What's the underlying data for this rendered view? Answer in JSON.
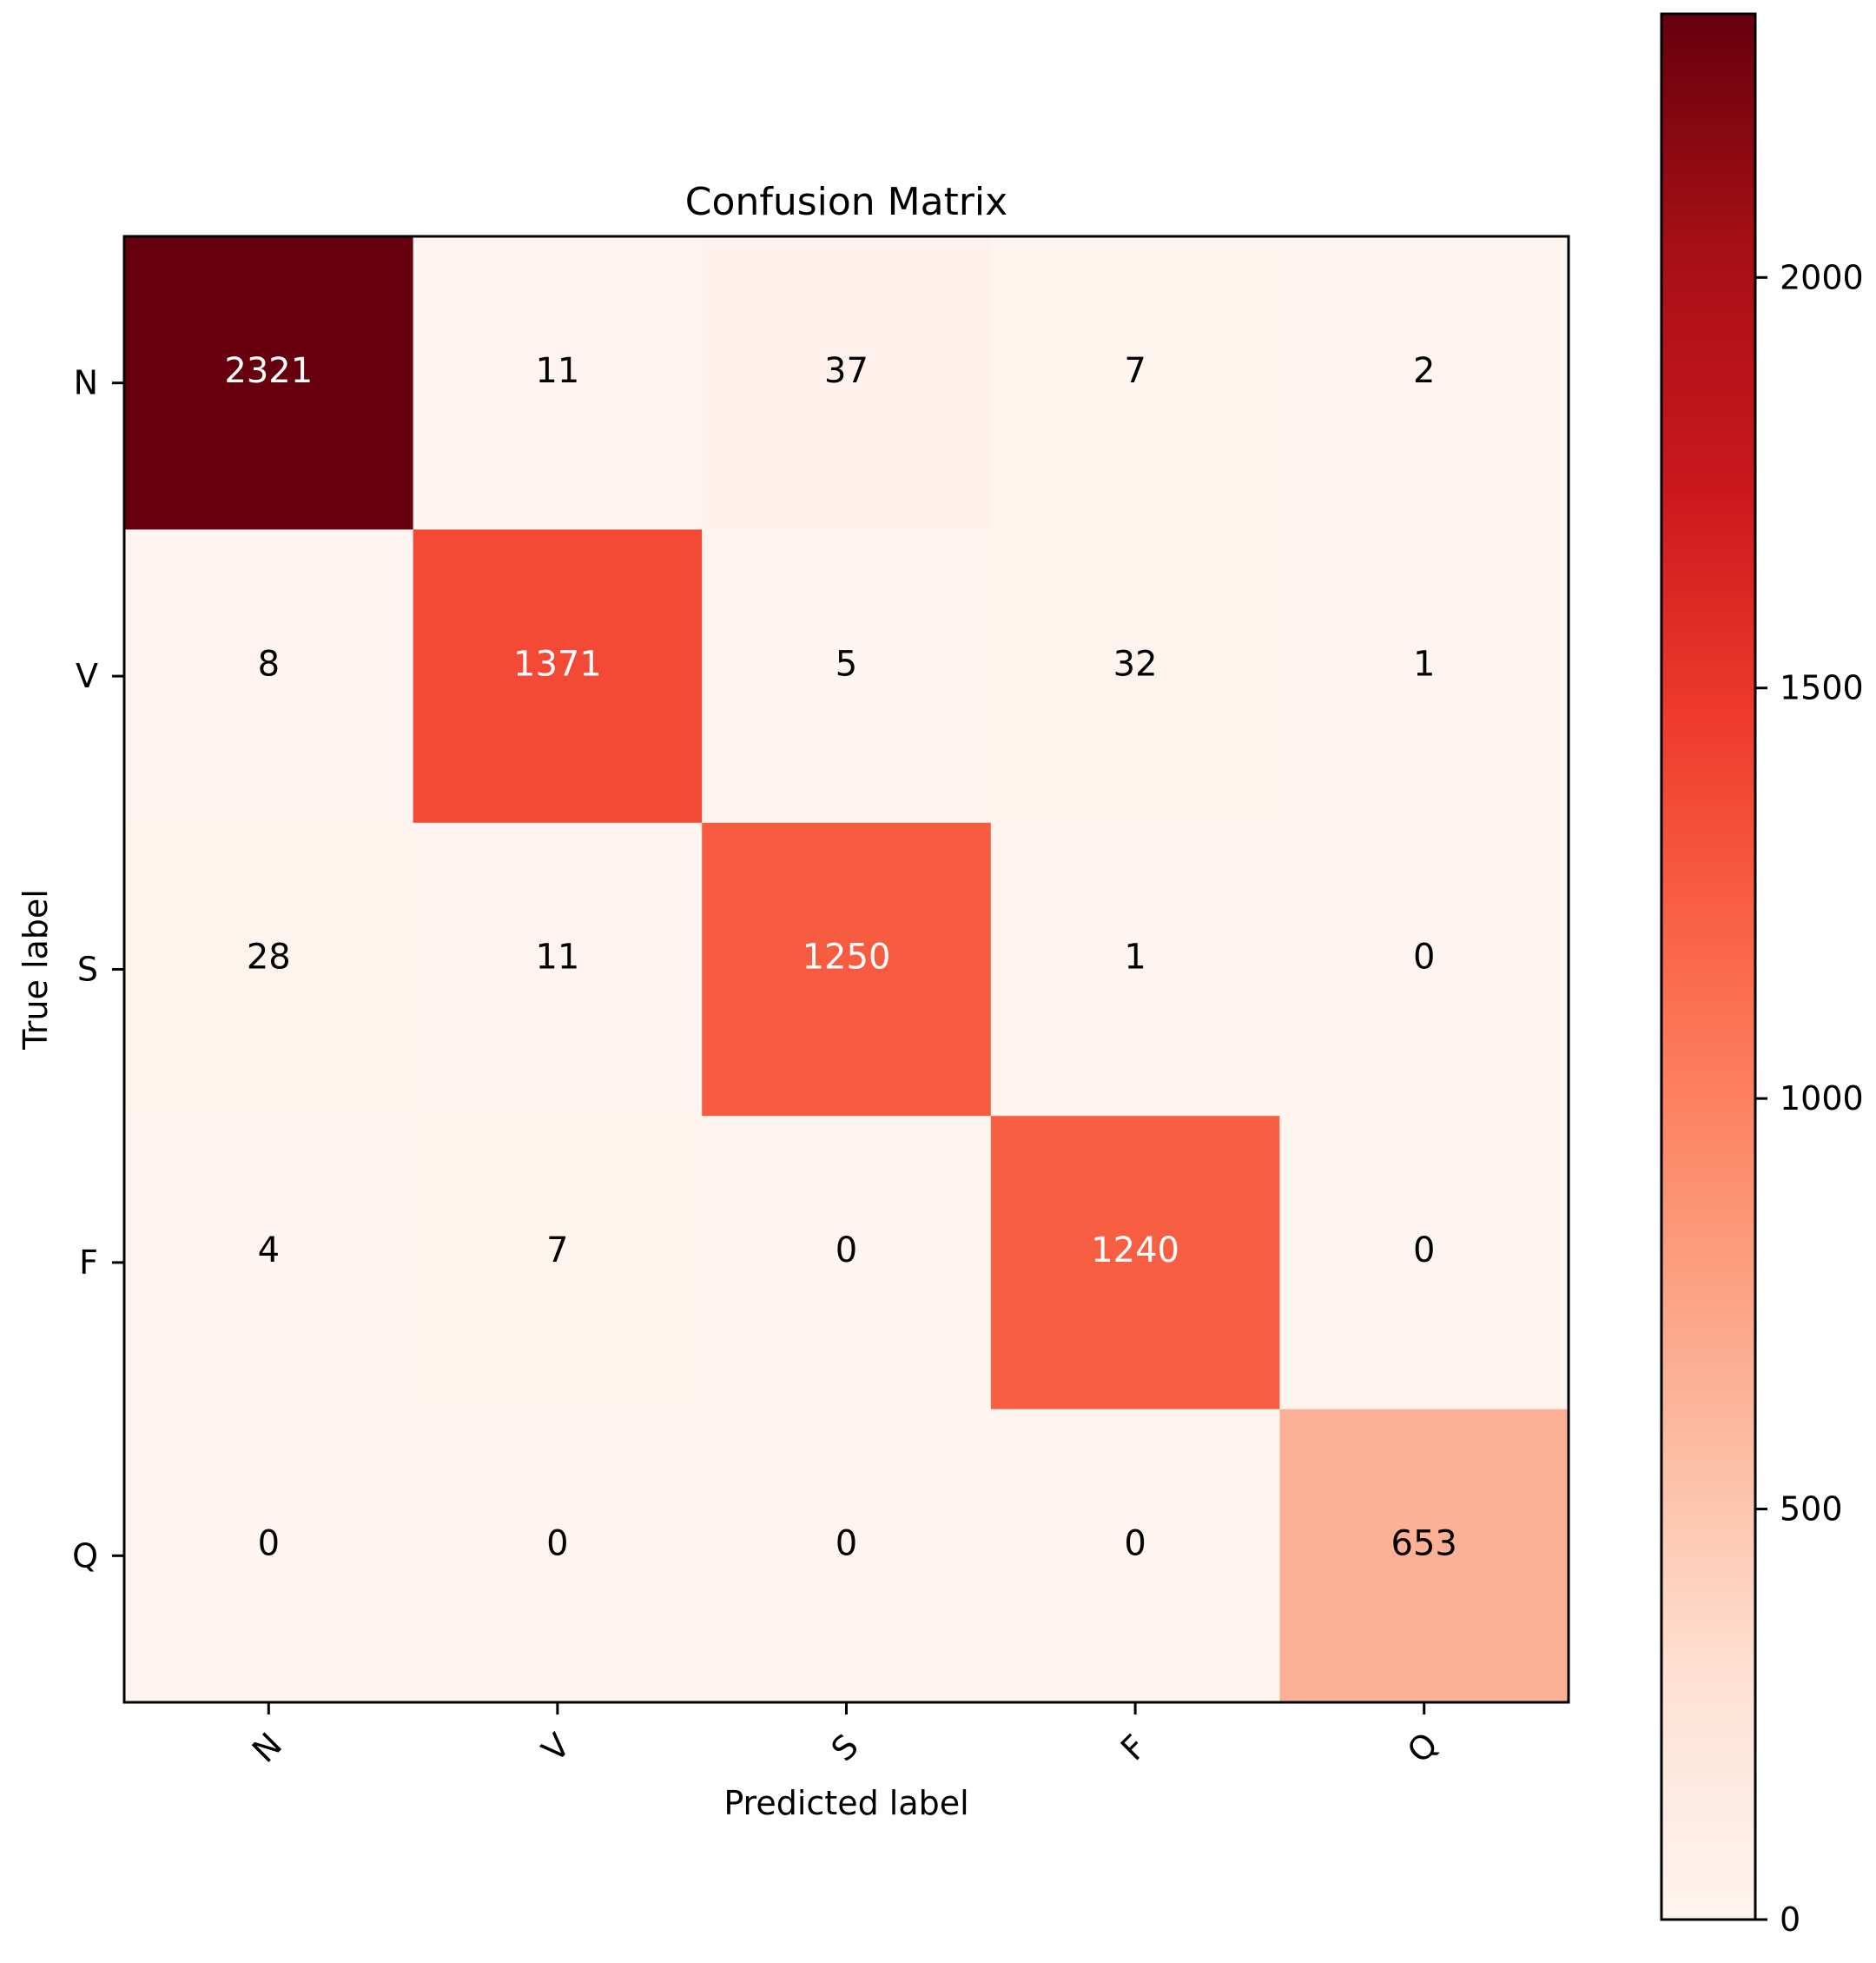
{
  "chart_data": {
    "type": "heatmap",
    "title": "Confusion Matrix",
    "xlabel": "Predicted label",
    "ylabel": "True label",
    "x_categories": [
      "N",
      "V",
      "S",
      "F",
      "Q"
    ],
    "y_categories": [
      "N",
      "V",
      "S",
      "F",
      "Q"
    ],
    "matrix": [
      [
        2321,
        11,
        37,
        7,
        2
      ],
      [
        8,
        1371,
        5,
        32,
        1
      ],
      [
        28,
        11,
        1250,
        1,
        0
      ],
      [
        4,
        7,
        0,
        1240,
        0
      ],
      [
        0,
        0,
        0,
        0,
        653
      ]
    ],
    "colorbar": {
      "min": 0,
      "max": 2321,
      "ticks": [
        0,
        500,
        1000,
        1500,
        2000
      ],
      "colormap": "Reds"
    }
  },
  "colors": {
    "low": "#fff5f0",
    "mid_low": "#fcbba1",
    "mid": "#fb6a4a",
    "mid_high": "#cb181d",
    "high": "#67000d",
    "text_dark": "#000000",
    "text_light": "#ffffff"
  }
}
